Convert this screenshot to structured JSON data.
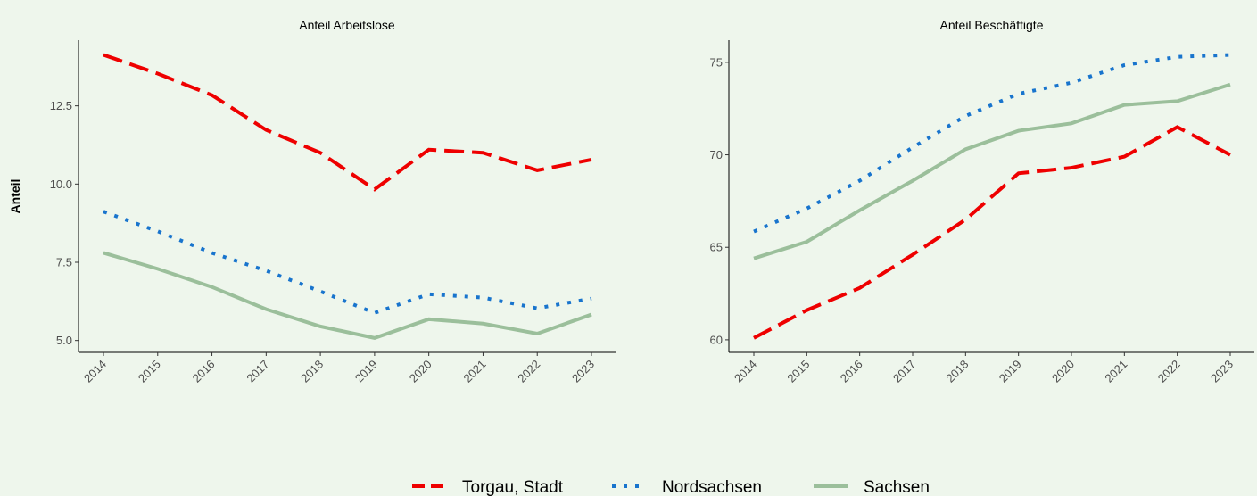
{
  "chart_data": [
    {
      "type": "line",
      "title": "Anteil Arbeitslose",
      "ylabel": "Anteil",
      "categories": [
        "2014",
        "2015",
        "2016",
        "2017",
        "2018",
        "2019",
        "2020",
        "2021",
        "2022",
        "2023"
      ],
      "ylim": [
        4.62,
        14.6
      ],
      "yticks": [
        {
          "value": 5,
          "label": "5.0"
        },
        {
          "value": 7.5,
          "label": "7.5"
        },
        {
          "value": 10,
          "label": "10.0"
        },
        {
          "value": 12.5,
          "label": "12.5"
        }
      ],
      "series": [
        {
          "name": "Torgau, Stadt",
          "color": "#ee0000",
          "linestyle": "dashed",
          "values": [
            14.13,
            13.53,
            12.84,
            11.73,
            11.0,
            9.83,
            11.1,
            11.0,
            10.44,
            10.78
          ]
        },
        {
          "name": "Nordsachsen",
          "color": "#1874cd",
          "linestyle": "dotted",
          "values": [
            9.12,
            8.49,
            7.8,
            7.23,
            6.57,
            5.88,
            6.48,
            6.37,
            6.03,
            6.34
          ]
        },
        {
          "name": "Sachsen",
          "color": "#9bbf9b",
          "linestyle": "solid",
          "values": [
            7.8,
            7.29,
            6.71,
            6.0,
            5.45,
            5.08,
            5.68,
            5.54,
            5.22,
            5.83
          ]
        }
      ]
    },
    {
      "type": "line",
      "title": "Anteil Beschäftigte",
      "categories": [
        "2014",
        "2015",
        "2016",
        "2017",
        "2018",
        "2019",
        "2020",
        "2021",
        "2022",
        "2023"
      ],
      "ylim": [
        59.32,
        76.2
      ],
      "yticks": [
        60,
        65,
        70,
        75
      ],
      "series": [
        {
          "name": "Torgau, Stadt",
          "color": "#ee0000",
          "linestyle": "dashed",
          "values": [
            60.1,
            61.6,
            62.8,
            64.6,
            66.5,
            69.0,
            69.3,
            69.9,
            71.5,
            70.0
          ]
        },
        {
          "name": "Nordsachsen",
          "color": "#1874cd",
          "linestyle": "dotted",
          "values": [
            65.85,
            67.1,
            68.6,
            70.4,
            72.1,
            73.3,
            73.9,
            74.85,
            75.3,
            75.4
          ]
        },
        {
          "name": "Sachsen",
          "color": "#9bbf9b",
          "linestyle": "solid",
          "values": [
            64.4,
            65.3,
            67.0,
            68.6,
            70.3,
            71.3,
            71.7,
            72.7,
            72.9,
            73.8
          ]
        }
      ]
    }
  ]
}
